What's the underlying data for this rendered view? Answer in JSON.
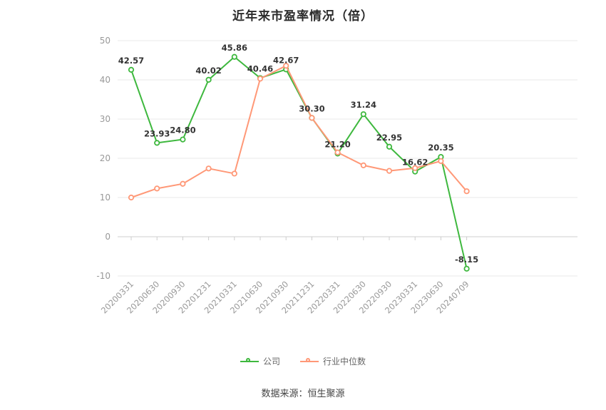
{
  "title": "近年来市盈率情况（倍）",
  "footer": "数据来源：恒生聚源",
  "chart_data": {
    "type": "line",
    "title": "近年来市盈率情况（倍）",
    "categories": [
      "20200331",
      "20200630",
      "20200930",
      "20201231",
      "20210331",
      "20210630",
      "20210930",
      "20211231",
      "20220331",
      "20220630",
      "20220930",
      "20230331",
      "20230630",
      "20240709"
    ],
    "series": [
      {
        "name": "公司",
        "color": "#3eb83e",
        "values": [
          42.57,
          23.93,
          24.8,
          40.02,
          45.86,
          40.46,
          42.67,
          30.3,
          21.2,
          31.24,
          22.95,
          16.62,
          20.35,
          -8.15
        ],
        "labels_shown": true
      },
      {
        "name": "行业中位数",
        "color": "#ff9877",
        "values": [
          10.0,
          12.3,
          13.5,
          17.4,
          16.1,
          40.3,
          43.6,
          30.3,
          21.5,
          18.2,
          16.8,
          17.5,
          19.3,
          11.6
        ],
        "labels_shown": false
      }
    ],
    "ylim": [
      -10,
      50
    ],
    "yticks": [
      50,
      40,
      30,
      20,
      10,
      0,
      -10
    ],
    "grid": true,
    "legend_position": "bottom",
    "xlabel": "",
    "ylabel": ""
  }
}
